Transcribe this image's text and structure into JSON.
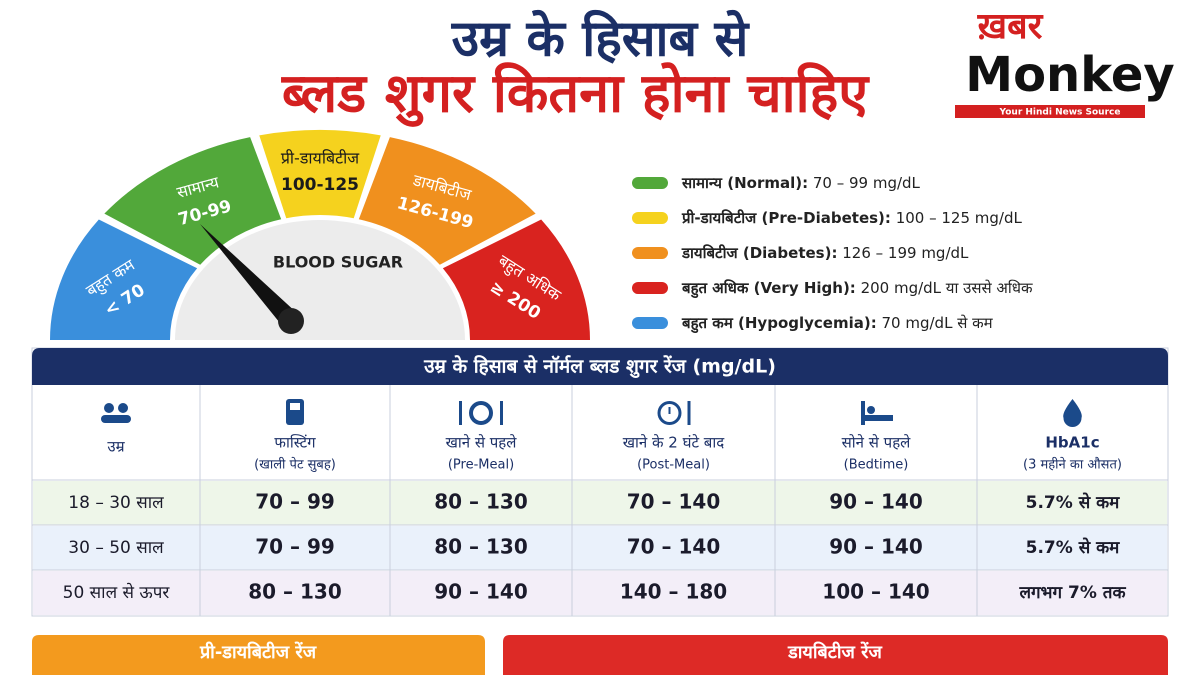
{
  "header": {
    "title_line1": "उम्र के हिसाब से",
    "title_line2": "ब्लड शुगर कितना होना चाहिए"
  },
  "logo": {
    "word1": "ख़बर",
    "word2": "Monkey",
    "tagline": "Your Hindi News Source"
  },
  "gauge": {
    "center_label": "BLOOD SUGAR",
    "segments": [
      {
        "name": "बहुत कम",
        "range": "< 70",
        "color": "#3a8fdc"
      },
      {
        "name": "सामान्य",
        "range": "70-99",
        "color": "#52a83a"
      },
      {
        "name": "प्री-डायबिटीज",
        "range": "100-125",
        "color": "#f5d21e"
      },
      {
        "name": "डायबिटीज",
        "range": "126-199",
        "color": "#f0901e"
      },
      {
        "name": "बहुत अधिक",
        "range": "≥ 200",
        "color": "#d9231f"
      }
    ]
  },
  "legend": [
    {
      "label": "सामान्य (Normal):",
      "value": "70 – 99 mg/dL",
      "color": "#52a83a"
    },
    {
      "label": "प्री-डायबिटीज (Pre-Diabetes):",
      "value": "100 – 125 mg/dL",
      "color": "#f5d21e"
    },
    {
      "label": "डायबिटीज (Diabetes):",
      "value": "126 – 199 mg/dL",
      "color": "#f0901e"
    },
    {
      "label": "बहुत अधिक (Very High):",
      "value": "200 mg/dL या उससे अधिक",
      "color": "#d9231f"
    },
    {
      "label": "बहुत कम (Hypoglycemia):",
      "value": "70 mg/dL से कम",
      "color": "#3a8fdc"
    }
  ],
  "table": {
    "title": "उम्र के हिसाब से नॉर्मल ब्लड शुगर रेंज (mg/dL)",
    "columns": [
      {
        "label": "उम्र"
      },
      {
        "label": "फास्टिंग",
        "sublabel": "(खाली पेट सुबह)"
      },
      {
        "label": "खाने से पहले",
        "sublabel": "(Pre-Meal)"
      },
      {
        "label": "खाने के 2 घंटे बाद",
        "sublabel": "(Post-Meal)"
      },
      {
        "label": "सोने से पहले",
        "sublabel": "(Bedtime)"
      },
      {
        "label": "HbA1c",
        "sublabel": "(3 महीने का औसत)"
      }
    ],
    "rows": [
      [
        "18 – 30 साल",
        "70 – 99",
        "80 – 130",
        "70 – 140",
        "90 – 140",
        "5.7% से कम"
      ],
      [
        "30 – 50 साल",
        "70 – 99",
        "80 – 130",
        "70 – 140",
        "90 – 140",
        "5.7% से कम"
      ],
      [
        "50 साल से ऊपर",
        "80 – 130",
        "90 – 140",
        "140 – 180",
        "100 – 140",
        "लगभग 7% तक"
      ]
    ]
  },
  "footer": {
    "left": "प्री-डायबिटीज रेंज",
    "right": "डायबिटीज रेंज"
  }
}
